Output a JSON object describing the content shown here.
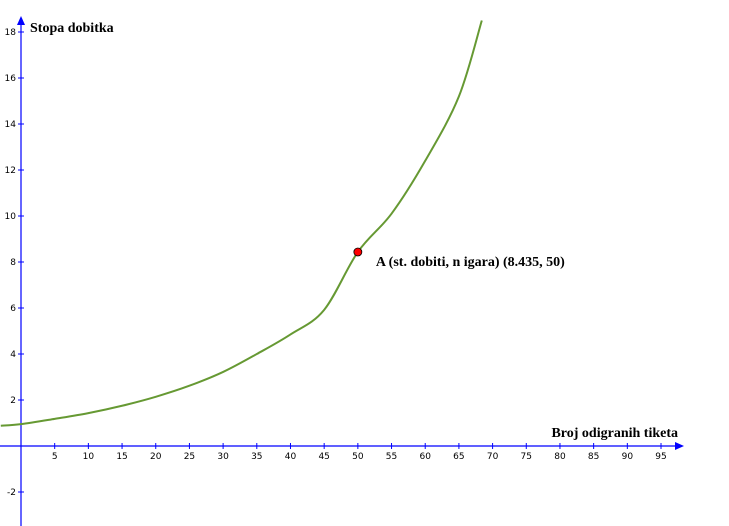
{
  "chart_data": {
    "type": "line",
    "ylabel": "Stopa dobitka",
    "xlabel": "Broj odigranih tiketa",
    "xlim": [
      -3,
      98
    ],
    "ylim": [
      -3.5,
      18.5
    ],
    "x_ticks": [
      5,
      10,
      15,
      20,
      25,
      30,
      35,
      40,
      45,
      50,
      55,
      60,
      65,
      70,
      75,
      80,
      85,
      90,
      95
    ],
    "y_ticks": [
      -2,
      2,
      4,
      6,
      8,
      10,
      12,
      14,
      16,
      18
    ],
    "grid": false,
    "series": [
      {
        "color": "#669933",
        "x": [
          -3,
          0,
          5,
          10,
          15,
          20,
          25,
          30,
          35,
          40,
          45,
          50,
          55,
          60,
          65,
          68.4
        ],
        "y": [
          0.88,
          0.95,
          1.18,
          1.43,
          1.75,
          2.14,
          2.62,
          3.22,
          4.0,
          4.85,
          5.92,
          8.435,
          10.1,
          12.4,
          15.2,
          18.5
        ]
      }
    ],
    "point": {
      "label": "A (st. dobiti, n igara) (8.435, 50)",
      "x": 50,
      "y": 8.435,
      "color": "#ff0000"
    },
    "axis_color": "#0000ff"
  }
}
